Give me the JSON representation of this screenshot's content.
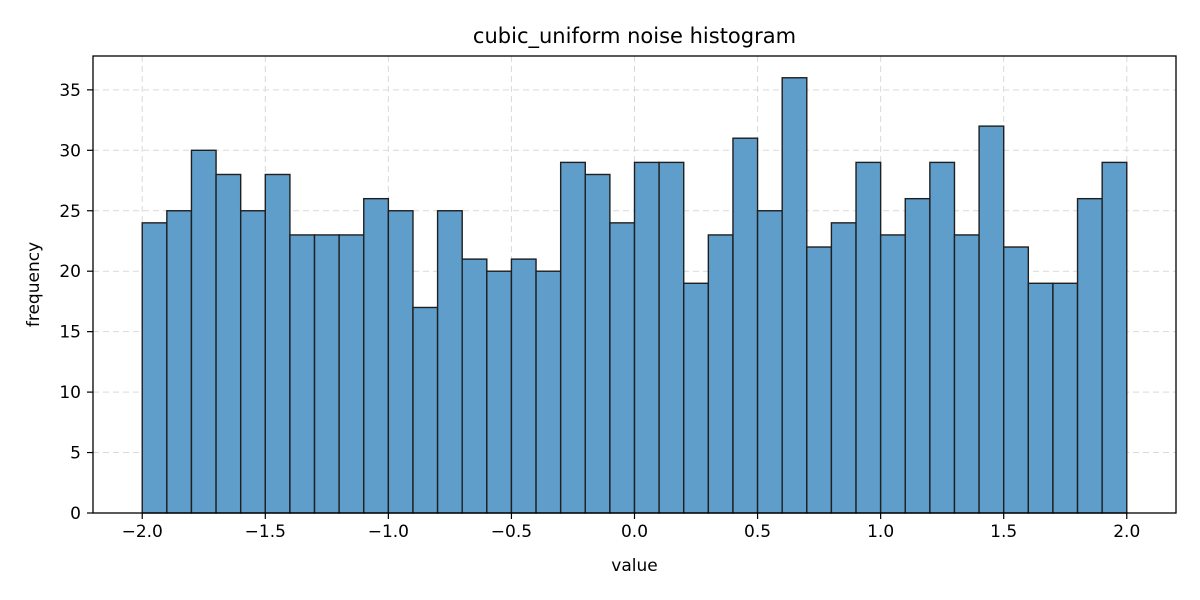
{
  "chart_data": {
    "type": "bar",
    "title": "cubic_uniform noise histogram",
    "xlabel": "value",
    "ylabel": "frequency",
    "xlim": [
      -2.2,
      2.2
    ],
    "ylim": [
      0,
      37.8
    ],
    "xticks": [
      -2.0,
      -1.5,
      -1.0,
      -0.5,
      0.0,
      0.5,
      1.0,
      1.5,
      2.0
    ],
    "xtick_labels": [
      "−2.0",
      "−1.5",
      "−1.0",
      "−0.5",
      "0.0",
      "0.5",
      "1.0",
      "1.5",
      "2.0"
    ],
    "yticks": [
      0,
      5,
      10,
      15,
      20,
      25,
      30,
      35
    ],
    "ytick_labels": [
      "0",
      "5",
      "10",
      "15",
      "20",
      "25",
      "30",
      "35"
    ],
    "bin_range": [
      -2.0,
      2.0
    ],
    "bin_count": 40,
    "values": [
      24,
      25,
      30,
      28,
      25,
      28,
      23,
      23,
      23,
      26,
      25,
      17,
      25,
      21,
      20,
      21,
      20,
      29,
      28,
      24,
      29,
      29,
      19,
      23,
      31,
      25,
      36,
      22,
      24,
      29,
      23,
      26,
      29,
      23,
      32,
      22,
      19,
      19,
      26,
      29
    ],
    "grid": true,
    "bar_color": "#5f9ecb",
    "edge_color": "#1f1f1f"
  }
}
